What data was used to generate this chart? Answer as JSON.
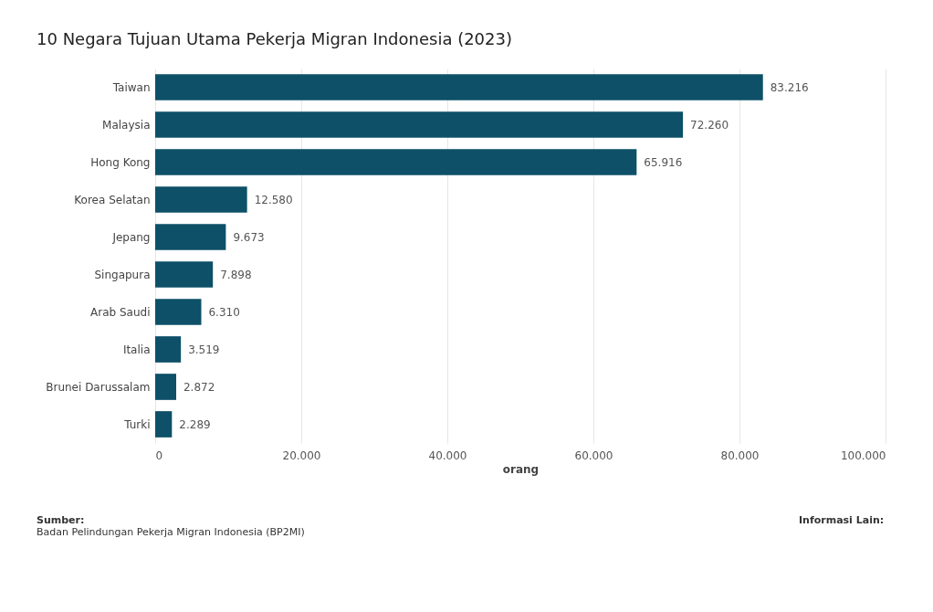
{
  "chart_data": {
    "type": "bar",
    "orientation": "horizontal",
    "title": "10 Negara Tujuan Utama Pekerja Migran Indonesia (2023)",
    "xlabel": "orang",
    "categories": [
      "Taiwan",
      "Malaysia",
      "Hong Kong",
      "Korea Selatan",
      "Jepang",
      "Singapura",
      "Arab Saudi",
      "Italia",
      "Brunei Darussalam",
      "Turki"
    ],
    "values": [
      83216,
      72260,
      65916,
      12580,
      9673,
      7898,
      6310,
      3519,
      2872,
      2289
    ],
    "value_labels": [
      "83.216",
      "72.260",
      "65.916",
      "12.580",
      "9.673",
      "7.898",
      "6.310",
      "3.519",
      "2.872",
      "2.289"
    ],
    "color": "#0d5068",
    "xlim": [
      0,
      100000
    ],
    "xticks": [
      0,
      {
        "value": 20000,
        "label": "20.000"
      },
      {
        "value": 40000,
        "label": "40.000"
      },
      {
        "value": 60000,
        "label": "60.000"
      },
      {
        "value": 80000,
        "label": "80.000"
      },
      {
        "value": 100000,
        "label": "100.000"
      }
    ],
    "grid": "x",
    "annotations": [
      "Sumber:",
      "Badan Pelindungan Pekerja Migran Indonesia (BP2MI)",
      "Informasi Lain:"
    ]
  }
}
